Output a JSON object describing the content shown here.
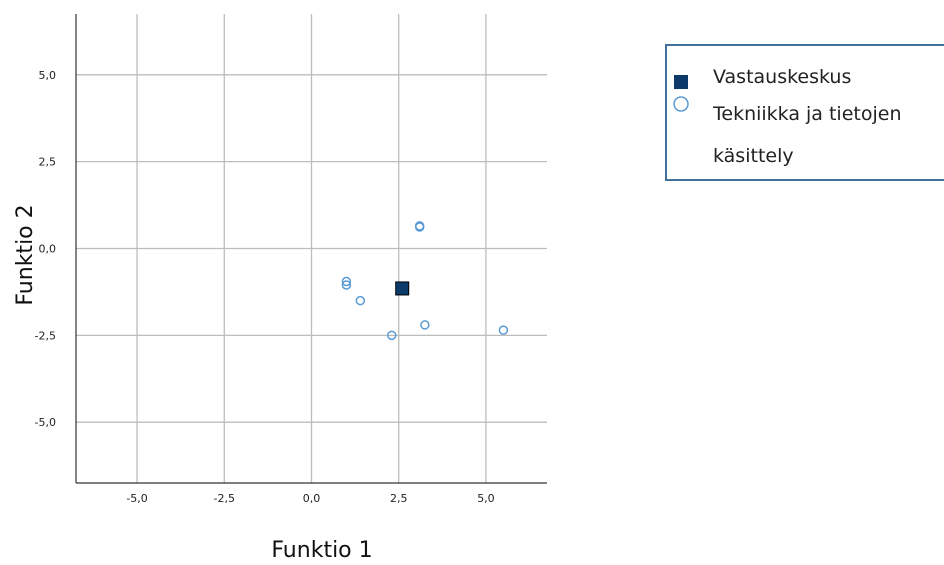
{
  "chart_data": {
    "type": "scatter",
    "xlabel": "Funktio 1",
    "ylabel": "Funktio 2",
    "xlim": [
      -6.75,
      6.75
    ],
    "ylim": [
      -6.75,
      6.75
    ],
    "x_ticks": [
      "-5,0",
      "-2,5",
      "0,0",
      "2,5",
      "5,0"
    ],
    "y_ticks": [
      "5,0",
      "2,5",
      "0,0",
      "-2,5",
      "-5,0"
    ],
    "x_tick_values": [
      -5,
      -2.5,
      0,
      2.5,
      5
    ],
    "y_tick_values": [
      5,
      2.5,
      0,
      -2.5,
      -5
    ],
    "grid": true,
    "legend_position": "right",
    "series": [
      {
        "name": "Vastauskeskus",
        "marker": "filled-square",
        "color": "#0b3a6b",
        "points": [
          {
            "x": 2.6,
            "y": -1.15
          }
        ]
      },
      {
        "name": "Tekniikka ja tietojen käsittely",
        "marker": "hollow-circle",
        "color": "#5b9bd5",
        "points": [
          {
            "x": 3.1,
            "y": 0.65
          },
          {
            "x": 3.1,
            "y": 0.62
          },
          {
            "x": 1.0,
            "y": -0.95
          },
          {
            "x": 1.0,
            "y": -1.05
          },
          {
            "x": 1.4,
            "y": -1.5
          },
          {
            "x": 2.3,
            "y": -2.5
          },
          {
            "x": 3.25,
            "y": -2.2
          },
          {
            "x": 5.5,
            "y": -2.35
          }
        ]
      }
    ]
  },
  "legend": {
    "items": [
      {
        "label": "Vastauskeskus",
        "marker": "filled-square"
      },
      {
        "label": "Tekniikka ja tietojen",
        "label_cont": "käsittely",
        "marker": "hollow-circle"
      }
    ]
  }
}
